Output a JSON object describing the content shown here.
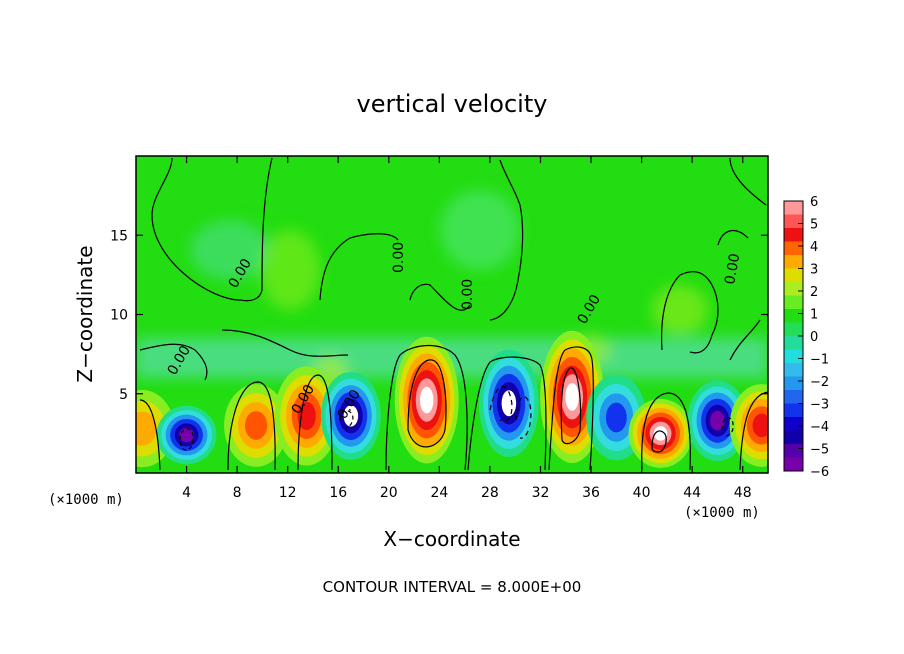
{
  "chart_data": {
    "type": "heatmap",
    "title": "vertical velocity",
    "xlabel": "X−coordinate",
    "ylabel": "Z−coordinate",
    "x_unit": "(×1000 m)",
    "y_unit": "(×1000 m)",
    "xlim": [
      0,
      50
    ],
    "ylim": [
      0,
      20
    ],
    "x_ticks": [
      4,
      8,
      12,
      16,
      20,
      24,
      28,
      32,
      36,
      40,
      44,
      48
    ],
    "y_ticks": [
      5,
      10,
      15
    ],
    "colorbar": {
      "ticks": [
        6,
        5,
        4,
        3,
        2,
        1,
        0,
        -1,
        -2,
        -3,
        -4,
        -5,
        -6
      ],
      "tick_labels": [
        "6",
        "5",
        "4",
        "3",
        "2",
        "1",
        "0",
        "−1",
        "−2",
        "−3",
        "−4",
        "−5",
        "−6"
      ],
      "range": [
        -6,
        6
      ]
    },
    "contour_label": "0.00",
    "footnote": "CONTOUR INTERVAL = 8.000E+00",
    "features": [
      {
        "x": 0.5,
        "z": 2.8,
        "w": 3.0
      },
      {
        "x": 4.0,
        "z": 2.4,
        "w": -5.5
      },
      {
        "x": 9.5,
        "z": 3.0,
        "w": 4.0
      },
      {
        "x": 13.5,
        "z": 3.6,
        "w": 4.5
      },
      {
        "x": 17.0,
        "z": 3.6,
        "w": -6.0
      },
      {
        "x": 23.0,
        "z": 4.6,
        "w": 8.0
      },
      {
        "x": 29.5,
        "z": 4.4,
        "w": -6.0
      },
      {
        "x": 34.5,
        "z": 4.8,
        "w": 7.0
      },
      {
        "x": 38.0,
        "z": 3.5,
        "w": -3.5
      },
      {
        "x": 41.5,
        "z": 2.5,
        "w": 6.5
      },
      {
        "x": 46.0,
        "z": 3.3,
        "w": -5.5
      },
      {
        "x": 49.5,
        "z": 3.0,
        "w": 5.0
      }
    ]
  }
}
